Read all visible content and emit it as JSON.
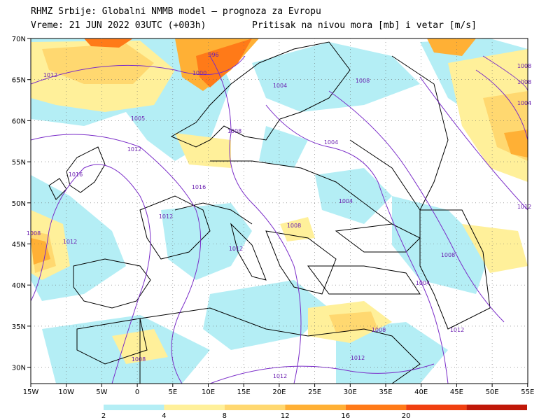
{
  "header": {
    "line1": "RHMZ Srbije: Globalni NMMB model — prognoza za Evropu",
    "line2_left": "Vreme: 21 JUN 2022 03UTC (+003h)",
    "line2_right": "Pritisak na nivou mora [mb] i vetar [m/s]"
  },
  "axes": {
    "lon_labels": [
      "15W",
      "10W",
      "5W",
      "0",
      "5E",
      "10E",
      "15E",
      "20E",
      "25E",
      "30E",
      "35E",
      "40E",
      "45E",
      "50E",
      "55E"
    ],
    "lat_labels": [
      "70N",
      "65N",
      "60N",
      "55N",
      "50N",
      "45N",
      "40N",
      "35N",
      "30N"
    ]
  },
  "isobar_labels": [
    {
      "text": "996"
    },
    {
      "text": "1000"
    },
    {
      "text": "1004"
    },
    {
      "text": "1008"
    },
    {
      "text": "1012"
    },
    {
      "text": "1005"
    },
    {
      "text": "1012"
    },
    {
      "text": "1008"
    },
    {
      "text": "1004"
    },
    {
      "text": "1016"
    },
    {
      "text": "1016"
    },
    {
      "text": "1012"
    },
    {
      "text": "1012"
    },
    {
      "text": "1008"
    },
    {
      "text": "1012"
    },
    {
      "text": "1004"
    },
    {
      "text": "1008"
    },
    {
      "text": "1004"
    },
    {
      "text": "1008"
    },
    {
      "text": "1012"
    },
    {
      "text": "1008"
    },
    {
      "text": "1012"
    },
    {
      "text": "1012"
    },
    {
      "text": "1008"
    },
    {
      "text": "1004"
    },
    {
      "text": "1008"
    },
    {
      "text": "1012"
    },
    {
      "text": "1008"
    }
  ],
  "legend": {
    "labels": [
      "2",
      "4",
      "8",
      "12",
      "16",
      "20"
    ],
    "colors": [
      "#b4eef5",
      "#fff09a",
      "#ffd870",
      "#ffb035",
      "#ff7a18",
      "#f04010",
      "#c01808"
    ]
  },
  "palette": {
    "ocean": "#ffffff",
    "calm": "#ffffff",
    "wind_2_4": "#b4eef5",
    "wind_4_8": "#fff09a",
    "wind_8_12": "#ffd870",
    "wind_12_16": "#ffb035",
    "wind_16_20": "#ff7a18",
    "border": "#000000",
    "isobar": "#7a2cc8"
  }
}
